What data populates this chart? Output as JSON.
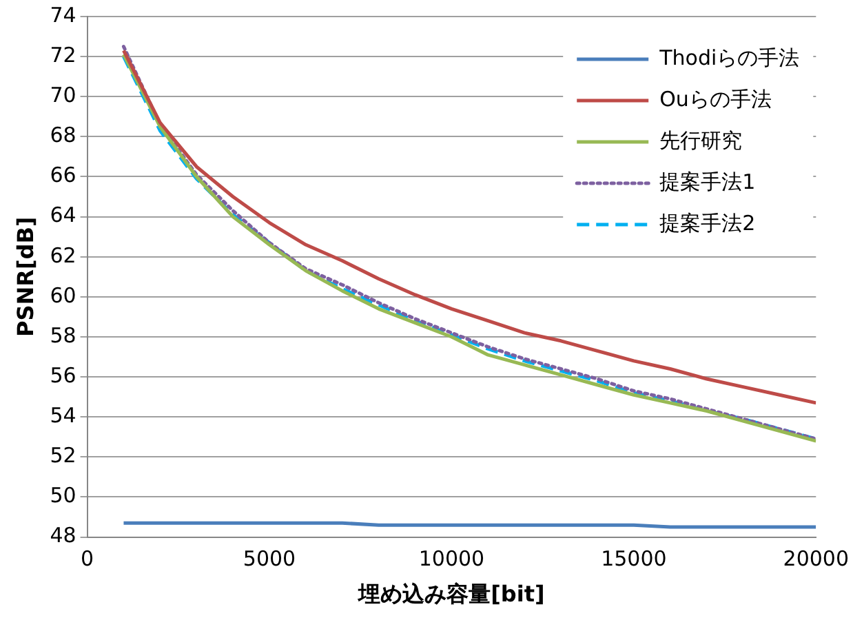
{
  "chart_data": {
    "type": "line",
    "xlabel": "埋め込み容量[bit]",
    "ylabel": "PSNR[dB]",
    "x": [
      1000,
      2000,
      3000,
      4000,
      5000,
      6000,
      7000,
      8000,
      9000,
      10000,
      11000,
      12000,
      13000,
      14000,
      15000,
      16000,
      17000,
      18000,
      19000,
      20000
    ],
    "xlim": [
      0,
      20000
    ],
    "xticks": [
      0,
      5000,
      10000,
      15000,
      20000
    ],
    "ylim": [
      48,
      74
    ],
    "yticks": [
      48,
      50,
      52,
      54,
      56,
      58,
      60,
      62,
      64,
      66,
      68,
      70,
      72,
      74
    ],
    "grid": "y",
    "legend": "top right",
    "marker": "none",
    "series": [
      {
        "name": "Thodiらの手法",
        "color": "#4a7ebb",
        "line_style": "solid",
        "values": [
          48.7,
          48.7,
          48.7,
          48.7,
          48.7,
          48.7,
          48.7,
          48.6,
          48.6,
          48.6,
          48.6,
          48.6,
          48.6,
          48.6,
          48.6,
          48.5,
          48.5,
          48.5,
          48.5,
          48.5
        ]
      },
      {
        "name": "Ouらの手法",
        "color": "#be4b48",
        "line_style": "solid",
        "values": [
          72.3,
          68.7,
          66.5,
          65.0,
          63.7,
          62.6,
          61.8,
          60.9,
          60.1,
          59.4,
          58.8,
          58.2,
          57.8,
          57.3,
          56.8,
          56.4,
          55.9,
          55.5,
          55.1,
          54.7
        ]
      },
      {
        "name": "先行研究",
        "color": "#98b954",
        "line_style": "solid",
        "values": [
          72.1,
          68.5,
          66.0,
          64.0,
          62.6,
          61.3,
          60.3,
          59.4,
          58.7,
          58.0,
          57.1,
          56.6,
          56.1,
          55.6,
          55.1,
          54.7,
          54.3,
          53.8,
          53.3,
          52.8
        ]
      },
      {
        "name": "提案手法1",
        "color": "#7d60a0",
        "line_style": "dotted",
        "values": [
          72.5,
          68.6,
          66.1,
          64.3,
          62.7,
          61.4,
          60.6,
          59.7,
          58.9,
          58.2,
          57.5,
          56.9,
          56.4,
          55.9,
          55.3,
          54.9,
          54.4,
          53.9,
          53.4,
          52.9
        ]
      },
      {
        "name": "提案手法2",
        "color": "#00b0f0",
        "line_style": "dashed",
        "values": [
          72.0,
          68.3,
          65.9,
          64.1,
          62.7,
          61.3,
          60.4,
          59.6,
          58.8,
          58.1,
          57.4,
          56.8,
          56.3,
          55.8,
          55.2,
          54.8,
          54.3,
          53.9,
          53.4,
          52.9
        ]
      }
    ]
  }
}
